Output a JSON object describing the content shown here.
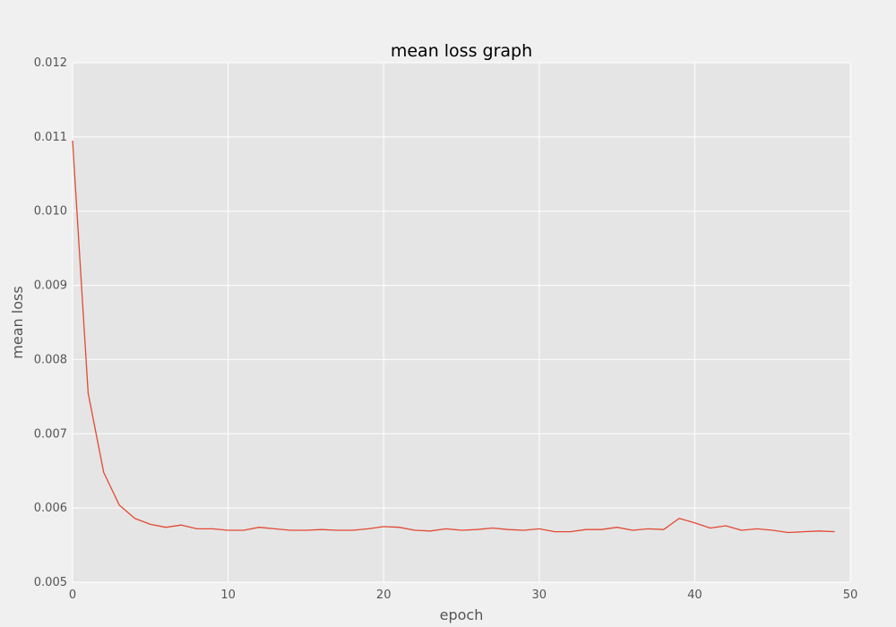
{
  "chart_data": {
    "type": "line",
    "title": "mean loss graph",
    "xlabel": "epoch",
    "ylabel": "mean loss",
    "xlim": [
      0,
      50
    ],
    "ylim": [
      0.005,
      0.012
    ],
    "xticks": [
      0,
      10,
      20,
      30,
      40,
      50
    ],
    "xtick_labels": [
      "0",
      "10",
      "20",
      "30",
      "40",
      "50"
    ],
    "yticks": [
      0.005,
      0.006,
      0.007,
      0.008,
      0.009,
      0.01,
      0.011,
      0.012
    ],
    "ytick_labels": [
      "0.005",
      "0.006",
      "0.007",
      "0.008",
      "0.009",
      "0.010",
      "0.011",
      "0.012"
    ],
    "grid": true,
    "series": [
      {
        "color": "#e24a33",
        "x": [
          0,
          1,
          2,
          3,
          4,
          5,
          6,
          7,
          8,
          9,
          10,
          11,
          12,
          13,
          14,
          15,
          16,
          17,
          18,
          19,
          20,
          21,
          22,
          23,
          24,
          25,
          26,
          27,
          28,
          29,
          30,
          31,
          32,
          33,
          34,
          35,
          36,
          37,
          38,
          39,
          40,
          41,
          42,
          43,
          44,
          45,
          46,
          47,
          48,
          49
        ],
        "y": [
          0.01095,
          0.00755,
          0.00648,
          0.00604,
          0.00586,
          0.00578,
          0.00574,
          0.00577,
          0.00572,
          0.00572,
          0.0057,
          0.0057,
          0.00574,
          0.00572,
          0.0057,
          0.0057,
          0.00571,
          0.0057,
          0.0057,
          0.00572,
          0.00575,
          0.00574,
          0.0057,
          0.00569,
          0.00572,
          0.0057,
          0.00571,
          0.00573,
          0.00571,
          0.0057,
          0.00572,
          0.00568,
          0.00568,
          0.00571,
          0.00571,
          0.00574,
          0.0057,
          0.00572,
          0.00571,
          0.00586,
          0.0058,
          0.00573,
          0.00576,
          0.0057,
          0.00572,
          0.0057,
          0.00567,
          0.00568,
          0.00569,
          0.00568
        ]
      }
    ]
  },
  "colors": {
    "background": "#f0f0f0",
    "plot_background": "#e5e5e5",
    "grid": "#ffffff",
    "line": "#e24a33"
  }
}
